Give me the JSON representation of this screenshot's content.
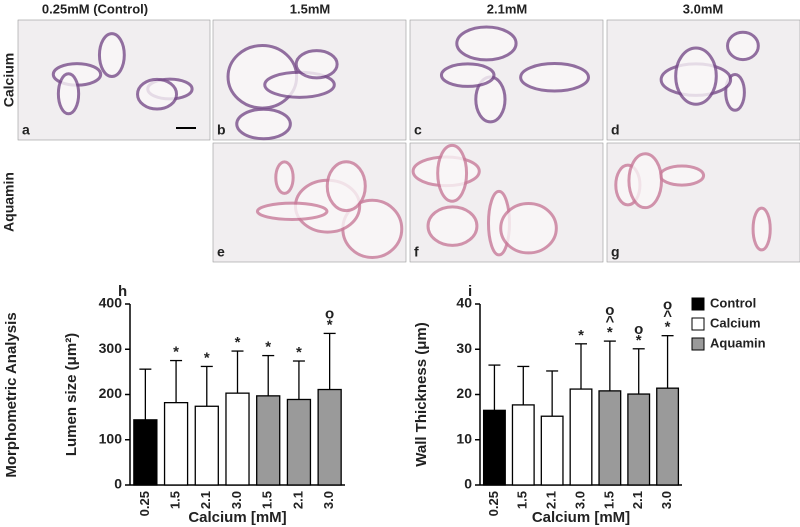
{
  "column_headers": [
    "0.25mM (Control)",
    "1.5mM",
    "2.1mM",
    "3.0mM"
  ],
  "row_labels": [
    "Calcium",
    "Aquamin"
  ],
  "section_label": "Morphometric Analysis",
  "image_panels": [
    "a",
    "b",
    "c",
    "d",
    "e",
    "f",
    "g"
  ],
  "chart_data": [
    {
      "type": "bar",
      "panel_label": "h",
      "ylabel": "Lumen size (μm²)",
      "xlabel": "Calcium [mM]",
      "categories": [
        "0.25",
        "1.5",
        "2.1",
        "3.0",
        "1.5",
        "2.1",
        "3.0"
      ],
      "ylim": [
        0,
        400
      ],
      "yticks": [
        0,
        100,
        200,
        300,
        400
      ],
      "series": [
        {
          "color": "#000000",
          "values": [
            144,
            null,
            null,
            null,
            null,
            null,
            null
          ],
          "errors": [
            112,
            null,
            null,
            null,
            null,
            null,
            null
          ],
          "annotations": [
            null,
            null,
            null,
            null,
            null,
            null,
            null
          ]
        },
        {
          "color": "#ffffff",
          "values": [
            null,
            182,
            174,
            203,
            null,
            null,
            null
          ],
          "errors": [
            null,
            93,
            88,
            93,
            null,
            null,
            null
          ],
          "annotations": [
            null,
            [
              "*"
            ],
            [
              "*"
            ],
            [
              "*"
            ],
            null,
            null,
            null
          ]
        },
        {
          "color": "#9a9a9a",
          "values": [
            null,
            null,
            null,
            null,
            197,
            189,
            211
          ],
          "errors": [
            null,
            null,
            null,
            null,
            89,
            85,
            124
          ],
          "annotations": [
            null,
            null,
            null,
            null,
            [
              "*"
            ],
            [
              "*"
            ],
            [
              "o",
              "*"
            ]
          ]
        }
      ]
    },
    {
      "type": "bar",
      "panel_label": "i",
      "ylabel": "Wall Thickness (μm)",
      "xlabel": "Calcium [mM]",
      "categories": [
        "0.25",
        "1.5",
        "2.1",
        "3.0",
        "1.5",
        "2.1",
        "3.0"
      ],
      "ylim": [
        0,
        40
      ],
      "yticks": [
        0,
        10,
        20,
        30,
        40
      ],
      "series": [
        {
          "name": "Control",
          "color": "#000000",
          "values": [
            16.5,
            null,
            null,
            null,
            null,
            null,
            null
          ],
          "errors": [
            10,
            null,
            null,
            null,
            null,
            null,
            null
          ],
          "annotations": [
            null,
            null,
            null,
            null,
            null,
            null,
            null
          ]
        },
        {
          "name": "Calcium",
          "color": "#ffffff",
          "values": [
            null,
            17.7,
            15.2,
            21.2,
            null,
            null,
            null
          ],
          "errors": [
            null,
            8.5,
            10,
            10,
            null,
            null,
            null
          ],
          "annotations": [
            null,
            null,
            null,
            [
              "*"
            ],
            null,
            null,
            null
          ]
        },
        {
          "name": "Aquamin",
          "color": "#9a9a9a",
          "values": [
            null,
            null,
            null,
            null,
            20.8,
            20.1,
            21.4
          ],
          "errors": [
            null,
            null,
            null,
            null,
            11,
            10,
            11.6
          ],
          "annotations": [
            null,
            null,
            null,
            null,
            [
              "o",
              "^",
              "*"
            ],
            [
              "o",
              "*"
            ],
            [
              "o",
              "^",
              "*"
            ]
          ]
        }
      ]
    }
  ]
}
